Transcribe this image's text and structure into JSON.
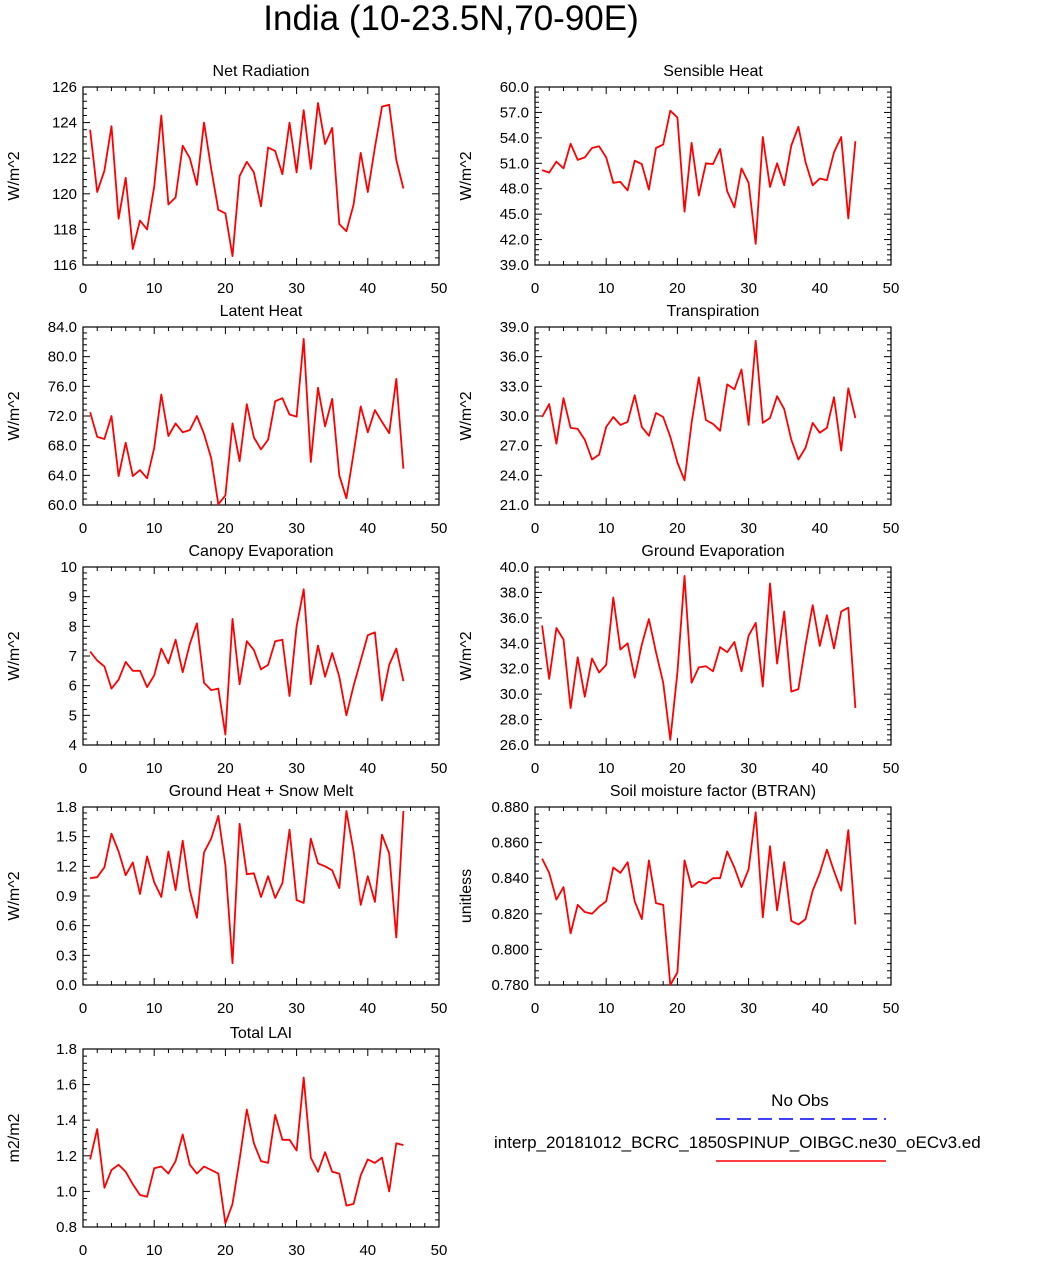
{
  "figure": {
    "title": "India (10-23.5N,70-90E)",
    "colors": {
      "model": "#ff0000",
      "obs": "#0000ff",
      "axes": "#000000"
    }
  },
  "legend": {
    "obs_label": "No Obs",
    "model_label": "interp_20181012_BCRC_1850SPINUP_OIBGC.ne30_oECv3.ed"
  },
  "chart_data": [
    {
      "type": "line",
      "title": "Net Radiation",
      "ylabel": "W/m^2",
      "xlim": [
        0,
        50
      ],
      "ylim": [
        116,
        126
      ],
      "xticks": [
        0,
        10,
        20,
        30,
        40,
        50
      ],
      "yticks": [
        116,
        118,
        120,
        122,
        124,
        126
      ],
      "ytick_labels": [
        "116",
        "118",
        "120",
        "122",
        "124",
        "126"
      ],
      "x": [
        1,
        2,
        3,
        4,
        5,
        6,
        7,
        8,
        9,
        10,
        11,
        12,
        13,
        14,
        15,
        16,
        17,
        18,
        19,
        20,
        21,
        22,
        23,
        24,
        25,
        26,
        27,
        28,
        29,
        30,
        31,
        32,
        33,
        34,
        35,
        36,
        37,
        38,
        39,
        40,
        41,
        42,
        43,
        44,
        45
      ],
      "values": [
        123.6,
        120.1,
        121.3,
        123.8,
        118.6,
        120.9,
        116.9,
        118.5,
        118.0,
        120.4,
        124.4,
        119.4,
        119.8,
        122.7,
        122.0,
        120.5,
        124.0,
        121.4,
        119.1,
        118.9,
        116.5,
        121.0,
        121.8,
        121.2,
        119.3,
        122.6,
        122.4,
        121.1,
        124.0,
        121.2,
        124.7,
        121.4,
        125.1,
        122.8,
        123.7,
        118.3,
        117.9,
        119.4,
        122.3,
        120.1,
        122.6,
        124.9,
        125.0,
        121.9,
        120.3
      ]
    },
    {
      "type": "line",
      "title": "Sensible Heat",
      "ylabel": "W/m^2",
      "xlim": [
        0,
        50
      ],
      "ylim": [
        39,
        60
      ],
      "xticks": [
        0,
        10,
        20,
        30,
        40,
        50
      ],
      "yticks": [
        39,
        42,
        45,
        48,
        51,
        54,
        57,
        60
      ],
      "ytick_labels": [
        "39.0",
        "42.0",
        "45.0",
        "48.0",
        "51.0",
        "54.0",
        "57.0",
        "60.0"
      ],
      "x": [
        1,
        2,
        3,
        4,
        5,
        6,
        7,
        8,
        9,
        10,
        11,
        12,
        13,
        14,
        15,
        16,
        17,
        18,
        19,
        20,
        21,
        22,
        23,
        24,
        25,
        26,
        27,
        28,
        29,
        30,
        31,
        32,
        33,
        34,
        35,
        36,
        37,
        38,
        39,
        40,
        41,
        42,
        43,
        44,
        45
      ],
      "values": [
        50.2,
        49.9,
        51.2,
        50.4,
        53.3,
        51.4,
        51.7,
        52.8,
        53.0,
        51.7,
        48.7,
        48.8,
        47.8,
        51.3,
        50.9,
        47.9,
        52.8,
        53.2,
        57.2,
        56.4,
        45.3,
        53.4,
        47.2,
        51.0,
        50.9,
        52.7,
        47.7,
        45.8,
        50.4,
        48.7,
        41.5,
        54.1,
        48.2,
        51.0,
        48.4,
        53.1,
        55.3,
        51.1,
        48.4,
        49.2,
        49.0,
        52.3,
        54.1,
        44.5,
        53.6
      ]
    },
    {
      "type": "line",
      "title": "Latent Heat",
      "ylabel": "W/m^2",
      "xlim": [
        0,
        50
      ],
      "ylim": [
        60,
        84
      ],
      "xticks": [
        0,
        10,
        20,
        30,
        40,
        50
      ],
      "yticks": [
        60,
        64,
        68,
        72,
        76,
        80,
        84
      ],
      "ytick_labels": [
        "60.0",
        "64.0",
        "68.0",
        "72.0",
        "76.0",
        "80.0",
        "84.0"
      ],
      "x": [
        1,
        2,
        3,
        4,
        5,
        6,
        7,
        8,
        9,
        10,
        11,
        12,
        13,
        14,
        15,
        16,
        17,
        18,
        19,
        20,
        21,
        22,
        23,
        24,
        25,
        26,
        27,
        28,
        29,
        30,
        31,
        32,
        33,
        34,
        35,
        36,
        37,
        38,
        39,
        40,
        41,
        42,
        43,
        44,
        45
      ],
      "values": [
        72.5,
        69.2,
        68.9,
        72.0,
        63.9,
        68.4,
        63.9,
        64.7,
        63.6,
        67.7,
        74.9,
        69.3,
        71.0,
        69.8,
        70.1,
        72.0,
        69.6,
        66.3,
        60.1,
        61.3,
        71.0,
        65.9,
        73.6,
        69.1,
        67.5,
        68.8,
        74.0,
        74.4,
        72.2,
        71.9,
        82.4,
        65.8,
        75.8,
        70.6,
        74.3,
        64.0,
        60.9,
        67.0,
        73.3,
        69.8,
        72.8,
        71.2,
        69.7,
        77.0,
        64.9
      ]
    },
    {
      "type": "line",
      "title": "Transpiration",
      "ylabel": "W/m^2",
      "xlim": [
        0,
        50
      ],
      "ylim": [
        21,
        39
      ],
      "xticks": [
        0,
        10,
        20,
        30,
        40,
        50
      ],
      "yticks": [
        21,
        24,
        27,
        30,
        33,
        36,
        39
      ],
      "ytick_labels": [
        "21.0",
        "24.0",
        "27.0",
        "30.0",
        "33.0",
        "36.0",
        "39.0"
      ],
      "x": [
        1,
        2,
        3,
        4,
        5,
        6,
        7,
        8,
        9,
        10,
        11,
        12,
        13,
        14,
        15,
        16,
        17,
        18,
        19,
        20,
        21,
        22,
        23,
        24,
        25,
        26,
        27,
        28,
        29,
        30,
        31,
        32,
        33,
        34,
        35,
        36,
        37,
        38,
        39,
        40,
        41,
        42,
        43,
        44,
        45
      ],
      "values": [
        29.9,
        31.2,
        27.2,
        31.8,
        28.8,
        28.7,
        27.6,
        25.6,
        26.1,
        28.9,
        29.9,
        29.1,
        29.4,
        32.1,
        28.9,
        28.0,
        30.3,
        29.9,
        27.9,
        25.3,
        23.5,
        29.3,
        33.9,
        29.6,
        29.2,
        28.5,
        33.2,
        32.7,
        34.7,
        29.1,
        37.6,
        29.3,
        29.8,
        32.0,
        30.7,
        27.6,
        25.6,
        26.8,
        29.3,
        28.3,
        28.8,
        31.9,
        26.5,
        32.8,
        29.8
      ]
    },
    {
      "type": "line",
      "title": "Canopy Evaporation",
      "ylabel": "W/m^2",
      "xlim": [
        0,
        50
      ],
      "ylim": [
        4,
        10
      ],
      "xticks": [
        0,
        10,
        20,
        30,
        40,
        50
      ],
      "yticks": [
        4,
        5,
        6,
        7,
        8,
        9,
        10
      ],
      "ytick_labels": [
        "4",
        "5",
        "6",
        "7",
        "8",
        "9",
        "10"
      ],
      "x": [
        1,
        2,
        3,
        4,
        5,
        6,
        7,
        8,
        9,
        10,
        11,
        12,
        13,
        14,
        15,
        16,
        17,
        18,
        19,
        20,
        21,
        22,
        23,
        24,
        25,
        26,
        27,
        28,
        29,
        30,
        31,
        32,
        33,
        34,
        35,
        36,
        37,
        38,
        39,
        40,
        41,
        42,
        43,
        44,
        45
      ],
      "values": [
        7.15,
        6.85,
        6.65,
        5.9,
        6.2,
        6.8,
        6.5,
        6.5,
        5.95,
        6.35,
        7.25,
        6.75,
        7.55,
        6.45,
        7.4,
        8.1,
        6.1,
        5.85,
        5.9,
        4.35,
        8.25,
        6.05,
        7.5,
        7.2,
        6.55,
        6.7,
        7.5,
        7.55,
        5.65,
        8.0,
        9.25,
        6.05,
        7.35,
        6.3,
        7.1,
        6.3,
        5.0,
        6.0,
        6.85,
        7.7,
        7.8,
        5.5,
        6.7,
        7.25,
        6.15
      ]
    },
    {
      "type": "line",
      "title": "Ground Evaporation",
      "ylabel": "W/m^2",
      "xlim": [
        0,
        50
      ],
      "ylim": [
        26,
        40
      ],
      "xticks": [
        0,
        10,
        20,
        30,
        40,
        50
      ],
      "yticks": [
        26,
        28,
        30,
        32,
        34,
        36,
        38,
        40
      ],
      "ytick_labels": [
        "26.0",
        "28.0",
        "30.0",
        "32.0",
        "34.0",
        "36.0",
        "38.0",
        "40.0"
      ],
      "x": [
        1,
        2,
        3,
        4,
        5,
        6,
        7,
        8,
        9,
        10,
        11,
        12,
        13,
        14,
        15,
        16,
        17,
        18,
        19,
        20,
        21,
        22,
        23,
        24,
        25,
        26,
        27,
        28,
        29,
        30,
        31,
        32,
        33,
        34,
        35,
        36,
        37,
        38,
        39,
        40,
        41,
        42,
        43,
        44,
        45
      ],
      "values": [
        35.4,
        31.2,
        35.2,
        34.3,
        28.9,
        32.9,
        29.8,
        32.8,
        31.7,
        32.3,
        37.6,
        33.5,
        34.0,
        31.3,
        33.9,
        35.9,
        33.3,
        30.9,
        26.4,
        31.7,
        39.3,
        30.9,
        32.1,
        32.2,
        31.8,
        33.7,
        33.3,
        34.1,
        31.8,
        34.6,
        35.6,
        30.6,
        38.7,
        32.4,
        36.5,
        30.2,
        30.4,
        33.9,
        37.0,
        33.8,
        36.2,
        33.6,
        36.5,
        36.8,
        28.9
      ]
    },
    {
      "type": "line",
      "title": "Ground Heat + Snow Melt",
      "ylabel": "W/m^2",
      "xlim": [
        0,
        50
      ],
      "ylim": [
        0,
        1.8
      ],
      "xticks": [
        0,
        10,
        20,
        30,
        40,
        50
      ],
      "yticks": [
        0,
        0.3,
        0.6,
        0.9,
        1.2,
        1.5,
        1.8
      ],
      "ytick_labels": [
        "0.0",
        "0.3",
        "0.6",
        "0.9",
        "1.2",
        "1.5",
        "1.8"
      ],
      "x": [
        1,
        2,
        3,
        4,
        5,
        6,
        7,
        8,
        9,
        10,
        11,
        12,
        13,
        14,
        15,
        16,
        17,
        18,
        19,
        20,
        21,
        22,
        23,
        24,
        25,
        26,
        27,
        28,
        29,
        30,
        31,
        32,
        33,
        34,
        35,
        36,
        37,
        38,
        39,
        40,
        41,
        42,
        43,
        44,
        45
      ],
      "values": [
        1.08,
        1.09,
        1.19,
        1.53,
        1.35,
        1.11,
        1.24,
        0.92,
        1.3,
        1.04,
        0.89,
        1.35,
        0.96,
        1.46,
        0.96,
        0.68,
        1.34,
        1.48,
        1.71,
        1.21,
        0.22,
        1.63,
        1.12,
        1.13,
        0.89,
        1.1,
        0.88,
        1.03,
        1.57,
        0.86,
        0.83,
        1.48,
        1.23,
        1.2,
        1.16,
        0.98,
        1.76,
        1.35,
        0.81,
        1.1,
        0.84,
        1.52,
        1.33,
        0.48,
        1.76
      ]
    },
    {
      "type": "line",
      "title": "Soil moisture factor (BTRAN)",
      "ylabel": "unitless",
      "xlim": [
        0,
        50
      ],
      "ylim": [
        0.78,
        0.88
      ],
      "xticks": [
        0,
        10,
        20,
        30,
        40,
        50
      ],
      "yticks": [
        0.78,
        0.8,
        0.82,
        0.84,
        0.86,
        0.88
      ],
      "ytick_labels": [
        "0.780",
        "0.800",
        "0.820",
        "0.840",
        "0.860",
        "0.880"
      ],
      "x": [
        1,
        2,
        3,
        4,
        5,
        6,
        7,
        8,
        9,
        10,
        11,
        12,
        13,
        14,
        15,
        16,
        17,
        18,
        19,
        20,
        21,
        22,
        23,
        24,
        25,
        26,
        27,
        28,
        29,
        30,
        31,
        32,
        33,
        34,
        35,
        36,
        37,
        38,
        39,
        40,
        41,
        42,
        43,
        44,
        45
      ],
      "values": [
        0.851,
        0.843,
        0.828,
        0.835,
        0.809,
        0.825,
        0.821,
        0.82,
        0.824,
        0.827,
        0.846,
        0.843,
        0.849,
        0.827,
        0.817,
        0.85,
        0.826,
        0.825,
        0.78,
        0.787,
        0.85,
        0.835,
        0.838,
        0.837,
        0.84,
        0.84,
        0.855,
        0.846,
        0.835,
        0.845,
        0.877,
        0.818,
        0.858,
        0.822,
        0.849,
        0.816,
        0.814,
        0.817,
        0.833,
        0.843,
        0.856,
        0.844,
        0.833,
        0.867,
        0.814
      ]
    },
    {
      "type": "line",
      "title": "Total LAI",
      "ylabel": "m2/m2",
      "xlim": [
        0,
        50
      ],
      "ylim": [
        0.8,
        1.8
      ],
      "xticks": [
        0,
        10,
        20,
        30,
        40,
        50
      ],
      "yticks": [
        0.8,
        1.0,
        1.2,
        1.4,
        1.6,
        1.8
      ],
      "ytick_labels": [
        "0.8",
        "1.0",
        "1.2",
        "1.4",
        "1.6",
        "1.8"
      ],
      "x": [
        1,
        2,
        3,
        4,
        5,
        6,
        7,
        8,
        9,
        10,
        11,
        12,
        13,
        14,
        15,
        16,
        17,
        18,
        19,
        20,
        21,
        22,
        23,
        24,
        25,
        26,
        27,
        28,
        29,
        30,
        31,
        32,
        33,
        34,
        35,
        36,
        37,
        38,
        39,
        40,
        41,
        42,
        43,
        44,
        45
      ],
      "values": [
        1.18,
        1.35,
        1.02,
        1.12,
        1.15,
        1.11,
        1.04,
        0.98,
        0.97,
        1.13,
        1.14,
        1.1,
        1.17,
        1.32,
        1.15,
        1.1,
        1.14,
        1.12,
        1.1,
        0.82,
        0.93,
        1.18,
        1.46,
        1.27,
        1.17,
        1.16,
        1.43,
        1.29,
        1.29,
        1.23,
        1.64,
        1.19,
        1.11,
        1.22,
        1.11,
        1.1,
        0.92,
        0.93,
        1.09,
        1.18,
        1.16,
        1.19,
        1.0,
        1.27,
        1.26
      ]
    }
  ]
}
